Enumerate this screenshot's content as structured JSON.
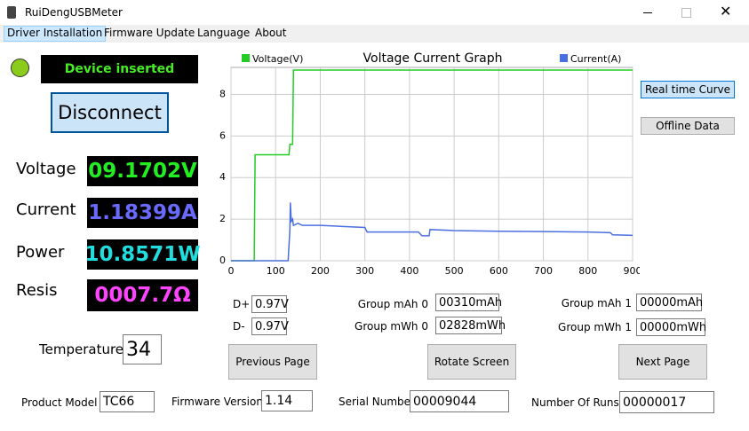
{
  "window": {
    "title": "RuiDengUSBMeter"
  },
  "menu": [
    "Driver Installation",
    "Firmware Update",
    "Language",
    "About"
  ],
  "status": "Device inserted",
  "connect_button": "Disconnect",
  "readings": [
    {
      "label": "Voltage",
      "value": "09.1702V"
    },
    {
      "label": "Current",
      "value": "1.18399A"
    },
    {
      "label": "Power",
      "value": "10.8571W"
    },
    {
      "label": "Resis",
      "value": "0007.7Ω"
    }
  ],
  "temperature": {
    "label": "Temperature",
    "value": "34"
  },
  "chart_data": {
    "type": "line",
    "title": "Voltage Current Graph",
    "series": [
      {
        "name": "Voltage(V)",
        "color": "#22cc22",
        "x": [
          0,
          52,
          54,
          130,
          132,
          138,
          140,
          900
        ],
        "values": [
          0,
          0,
          5.1,
          5.1,
          5.6,
          5.6,
          9.17,
          9.17
        ]
      },
      {
        "name": "Current(A)",
        "color": "#4a6fe0",
        "x": [
          0,
          128,
          132,
          133,
          135,
          138,
          140,
          150,
          160,
          200,
          250,
          300,
          305,
          420,
          428,
          444,
          446,
          500,
          600,
          700,
          800,
          850,
          855,
          900
        ],
        "values": [
          0,
          0,
          1.5,
          2.8,
          1.9,
          2.0,
          1.7,
          1.8,
          1.7,
          1.7,
          1.65,
          1.6,
          1.38,
          1.38,
          1.2,
          1.2,
          1.5,
          1.45,
          1.42,
          1.4,
          1.38,
          1.35,
          1.25,
          1.22
        ]
      }
    ],
    "xlim": [
      0,
      900
    ],
    "xticks": [
      0,
      100,
      200,
      300,
      400,
      500,
      600,
      700,
      800,
      900
    ],
    "ylim": [
      0,
      9.3
    ],
    "yticks": [
      0,
      2,
      4,
      6,
      8
    ],
    "grid": true
  },
  "view_buttons": [
    "Real time Curve",
    "Offline Data"
  ],
  "fields": [
    {
      "label": "D+",
      "value": "0.97V"
    },
    {
      "label": "D-",
      "value": "0.97V"
    },
    {
      "label": "Group mAh 0",
      "value": "00310mAh"
    },
    {
      "label": "Group mWh 0",
      "value": "02828mWh"
    },
    {
      "label": "Group mAh 1",
      "value": "00000mAh"
    },
    {
      "label": "Group mWh 1",
      "value": "00000mWh"
    }
  ],
  "page_buttons": [
    "Previous Page",
    "Rotate Screen",
    "Next Page"
  ],
  "footer": [
    {
      "label": "Product Model",
      "value": "TC66"
    },
    {
      "label": "Firmware Version",
      "value": "1.14"
    },
    {
      "label": "Serial Number",
      "value": "00009044"
    },
    {
      "label": "Number Of Runs",
      "value": "00000017"
    }
  ]
}
